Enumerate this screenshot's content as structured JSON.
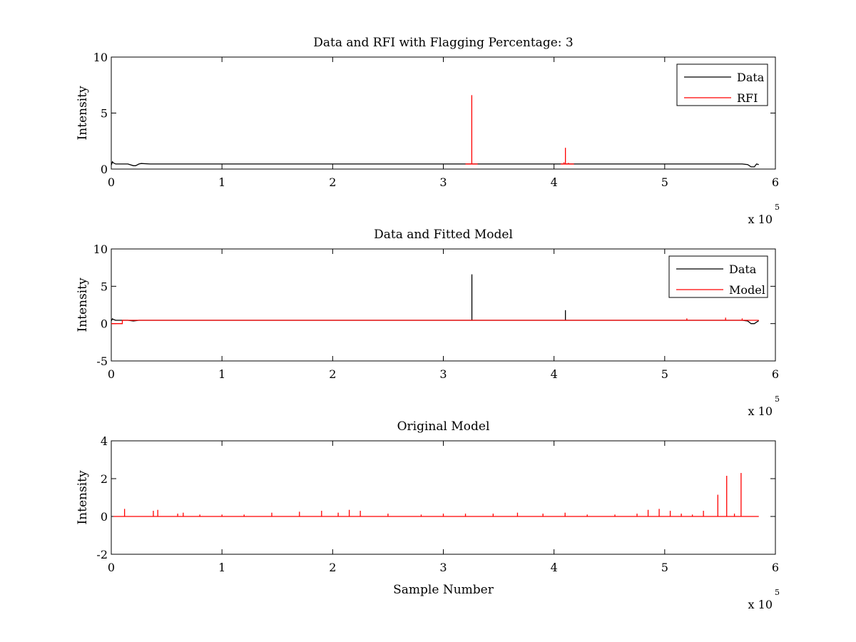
{
  "chart_data": [
    {
      "type": "line",
      "title": "Data and RFI with Flagging Percentage: 3",
      "xlabel": "",
      "ylabel": "Intensity",
      "xlim": [
        0,
        6
      ],
      "ylim": [
        0,
        10
      ],
      "x_ticks": [
        "0",
        "1",
        "2",
        "3",
        "4",
        "5",
        "6"
      ],
      "y_ticks": [
        "0",
        "5",
        "10"
      ],
      "x_multiplier_label": "x 10",
      "x_multiplier_exponent": "5",
      "legend": {
        "position": "top-right",
        "entries": [
          {
            "name": "Data",
            "color": "#000000"
          },
          {
            "name": "RFI",
            "color": "#ff0000"
          }
        ]
      },
      "series": [
        {
          "name": "Data",
          "color": "#000000",
          "x": [
            0,
            0.01,
            0.02,
            0.04,
            0.08,
            0.15,
            0.2,
            0.22,
            0.25,
            0.27,
            0.35,
            0.5,
            0.8,
            1.2,
            1.6,
            2.0,
            2.4,
            2.8,
            3.2,
            3.6,
            4.0,
            4.4,
            4.8,
            5.2,
            5.5,
            5.6,
            5.7,
            5.75,
            5.78,
            5.81,
            5.83,
            5.85
          ],
          "values": [
            0.35,
            0.65,
            0.55,
            0.45,
            0.45,
            0.45,
            0.3,
            0.3,
            0.45,
            0.5,
            0.45,
            0.45,
            0.45,
            0.45,
            0.45,
            0.45,
            0.45,
            0.45,
            0.45,
            0.45,
            0.45,
            0.45,
            0.45,
            0.45,
            0.45,
            0.45,
            0.45,
            0.4,
            0.2,
            0.2,
            0.45,
            0.4
          ]
        },
        {
          "name": "RFI",
          "color": "#ff0000",
          "spikes": [
            {
              "x": 3.257,
              "value": 6.6
            },
            {
              "x": 4.103,
              "value": 1.9
            },
            {
              "x": 4.09,
              "value": 0.6
            },
            {
              "x": 4.13,
              "value": 0.55
            }
          ],
          "segments": [
            {
              "x0": 3.2,
              "x1": 3.31,
              "value": 0.45
            },
            {
              "x0": 4.06,
              "x1": 4.18,
              "value": 0.45
            }
          ]
        }
      ]
    },
    {
      "type": "line",
      "title": "Data and Fitted Model",
      "xlabel": "",
      "ylabel": "Intensity",
      "xlim": [
        0,
        6
      ],
      "ylim": [
        -5,
        10
      ],
      "x_ticks": [
        "0",
        "1",
        "2",
        "3",
        "4",
        "5",
        "6"
      ],
      "y_ticks": [
        "-5",
        "0",
        "5",
        "10"
      ],
      "x_multiplier_label": "x 10",
      "x_multiplier_exponent": "5",
      "legend": {
        "position": "top-right",
        "entries": [
          {
            "name": "Data",
            "color": "#000000"
          },
          {
            "name": "Model",
            "color": "#ff0000"
          }
        ]
      },
      "series": [
        {
          "name": "Data",
          "color": "#000000",
          "x": [
            0,
            0.01,
            0.02,
            0.04,
            0.08,
            0.15,
            0.2,
            0.25,
            0.5,
            1.0,
            1.5,
            2.0,
            2.5,
            3.0,
            3.5,
            4.0,
            4.5,
            5.0,
            5.5,
            5.7,
            5.75,
            5.78,
            5.81,
            5.85
          ],
          "values": [
            0.35,
            0.65,
            0.55,
            0.45,
            0.45,
            0.45,
            0.35,
            0.45,
            0.45,
            0.45,
            0.45,
            0.45,
            0.45,
            0.45,
            0.45,
            0.45,
            0.45,
            0.45,
            0.45,
            0.45,
            0.35,
            0.0,
            0.0,
            0.4
          ],
          "spikes": [
            {
              "x": 3.258,
              "value": 6.6
            },
            {
              "x": 4.103,
              "value": 1.8
            }
          ]
        },
        {
          "name": "Model",
          "color": "#ff0000",
          "x": [
            0,
            0.1,
            0.1,
            0.25,
            0.5,
            1.0,
            2.0,
            3.0,
            4.0,
            5.0,
            5.5,
            5.85
          ],
          "values": [
            0.0,
            0.0,
            0.45,
            0.45,
            0.45,
            0.45,
            0.45,
            0.45,
            0.45,
            0.45,
            0.45,
            0.45
          ],
          "spikes": [
            {
              "x": 5.2,
              "value": 0.7
            },
            {
              "x": 5.55,
              "value": 0.8
            },
            {
              "x": 5.7,
              "value": 0.7
            }
          ]
        }
      ]
    },
    {
      "type": "line",
      "title": "Original Model",
      "xlabel": "Sample Number",
      "ylabel": "Intensity",
      "xlim": [
        0,
        6
      ],
      "ylim": [
        -2,
        4
      ],
      "x_ticks": [
        "0",
        "1",
        "2",
        "3",
        "4",
        "5",
        "6"
      ],
      "y_ticks": [
        "-2",
        "0",
        "2",
        "4"
      ],
      "x_multiplier_label": "x 10",
      "x_multiplier_exponent": "5",
      "series": [
        {
          "name": "",
          "color": "#ff0000",
          "baseline": 0,
          "x_range": [
            0.02,
            5.85
          ],
          "spikes": [
            {
              "x": 0.12,
              "value": 0.4
            },
            {
              "x": 0.38,
              "value": 0.3
            },
            {
              "x": 0.42,
              "value": 0.35
            },
            {
              "x": 0.6,
              "value": 0.15
            },
            {
              "x": 0.65,
              "value": 0.2
            },
            {
              "x": 0.8,
              "value": 0.1
            },
            {
              "x": 1.0,
              "value": 0.1
            },
            {
              "x": 1.2,
              "value": 0.1
            },
            {
              "x": 1.45,
              "value": 0.2
            },
            {
              "x": 1.7,
              "value": 0.25
            },
            {
              "x": 1.9,
              "value": 0.3
            },
            {
              "x": 2.05,
              "value": 0.2
            },
            {
              "x": 2.15,
              "value": 0.35
            },
            {
              "x": 2.25,
              "value": 0.3
            },
            {
              "x": 2.5,
              "value": 0.15
            },
            {
              "x": 2.8,
              "value": 0.1
            },
            {
              "x": 3.0,
              "value": 0.15
            },
            {
              "x": 3.2,
              "value": 0.15
            },
            {
              "x": 3.45,
              "value": 0.15
            },
            {
              "x": 3.67,
              "value": 0.2
            },
            {
              "x": 3.9,
              "value": 0.15
            },
            {
              "x": 4.1,
              "value": 0.2
            },
            {
              "x": 4.3,
              "value": 0.1
            },
            {
              "x": 4.55,
              "value": 0.1
            },
            {
              "x": 4.75,
              "value": 0.15
            },
            {
              "x": 4.85,
              "value": 0.35
            },
            {
              "x": 4.95,
              "value": 0.4
            },
            {
              "x": 5.05,
              "value": 0.3
            },
            {
              "x": 5.15,
              "value": 0.15
            },
            {
              "x": 5.25,
              "value": 0.1
            },
            {
              "x": 5.35,
              "value": 0.3
            },
            {
              "x": 5.48,
              "value": 1.15
            },
            {
              "x": 5.56,
              "value": 2.15
            },
            {
              "x": 5.63,
              "value": 0.15
            },
            {
              "x": 5.69,
              "value": 2.3
            }
          ]
        }
      ]
    }
  ]
}
